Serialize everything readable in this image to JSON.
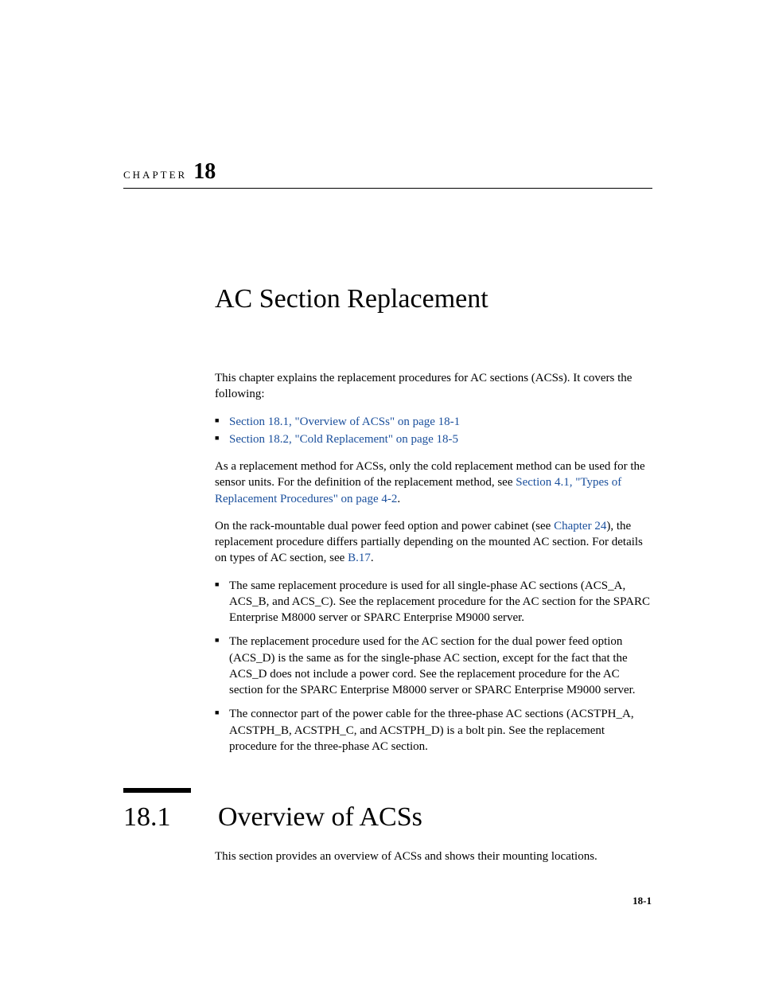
{
  "chapter": {
    "label": "CHAPTER",
    "number": "18",
    "title": "AC Section Replacement"
  },
  "intro": "This chapter explains the replacement procedures for AC sections (ACSs). It covers the following:",
  "toc": [
    "Section 18.1, \"Overview of ACSs\" on page 18-1",
    "Section 18.2, \"Cold Replacement\" on page 18-5"
  ],
  "para2_pre": "As a replacement method for ACSs, only the cold replacement method can be used for the sensor units. For the definition of the replacement method, see ",
  "para2_link": "Section 4.1, \"Types of Replacement Procedures\" on page 4-2",
  "para2_post": ".",
  "para3_pre": "On the rack-mountable dual power feed option and power cabinet (see ",
  "para3_link1": "Chapter 24",
  "para3_mid": "), the replacement procedure differs partially depending on the mounted AC section. For details on types of AC section, see ",
  "para3_link2": "B.17",
  "para3_post": ".",
  "bullets": [
    "The same replacement procedure is used for all single-phase AC sections (ACS_A, ACS_B, and ACS_C). See the replacement procedure for the AC section for the SPARC Enterprise M8000 server or SPARC Enterprise M9000 server.",
    "The replacement procedure used for the AC section for the dual power feed option (ACS_D) is the same as for the single-phase AC section, except for the fact that the ACS_D does not include a power cord. See the replacement procedure for the AC section for the SPARC Enterprise M8000 server or SPARC Enterprise M9000 server.",
    "The connector part of the power cable for the three-phase AC sections (ACSTPH_A, ACSTPH_B, ACSTPH_C, and ACSTPH_D) is a bolt pin. See the replacement procedure for the three-phase AC section."
  ],
  "section": {
    "number": "18.1",
    "title": "Overview of ACSs",
    "intro": "This section provides an overview of ACSs and shows their mounting locations."
  },
  "page_number": "18-1"
}
